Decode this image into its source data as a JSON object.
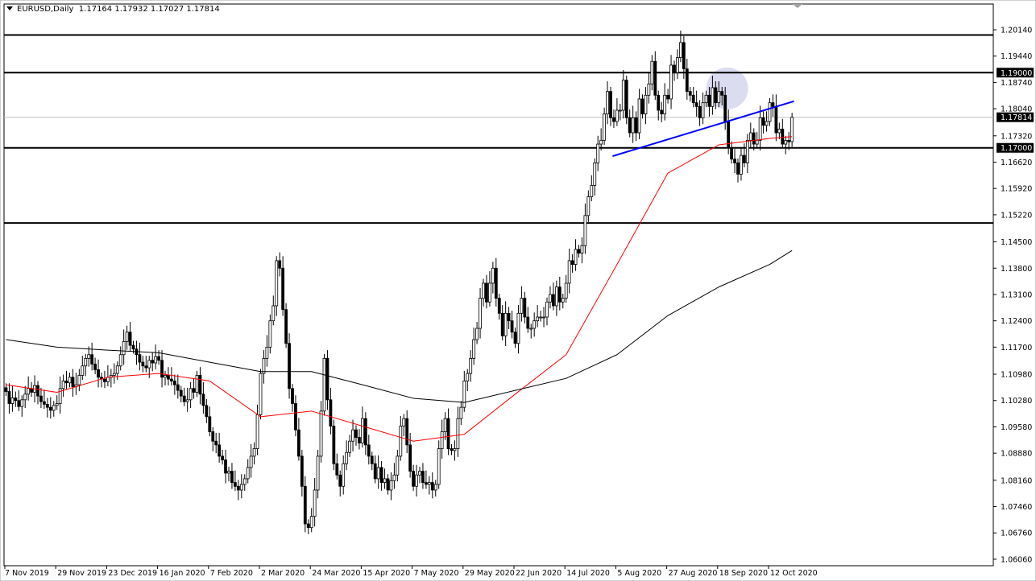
{
  "header": {
    "symbol_timeframe": "EURUSD,Daily",
    "ohlc_text": "1.17164 1.17932 1.17027 1.17814"
  },
  "chart_data": {
    "type": "candlestick",
    "symbol": "EURUSD",
    "timeframe": "Daily",
    "first_date": "2019-11-07",
    "last_bar": {
      "open": 1.17164,
      "high": 1.17932,
      "low": 1.17027,
      "close": 1.17814
    },
    "ylim": [
      1.0578,
      1.2074
    ],
    "y_ticks": [
      "1.20140",
      "1.19440",
      "1.18740",
      "1.18040",
      "1.17320",
      "1.16620",
      "1.15920",
      "1.15220",
      "1.14500",
      "1.13800",
      "1.13100",
      "1.12400",
      "1.11700",
      "1.10980",
      "1.10280",
      "1.09580",
      "1.08880",
      "1.08160",
      "1.07460",
      "1.06760",
      "1.06060"
    ],
    "x_labels": [
      "7 Nov 2019",
      "29 Nov 2019",
      "23 Dec 2019",
      "16 Jan 2020",
      "7 Feb 2020",
      "2 Mar 2020",
      "24 Mar 2020",
      "15 Apr 2020",
      "7 May 2020",
      "29 May 2020",
      "22 Jun 2020",
      "14 Jul 2020",
      "5 Aug 2020",
      "27 Aug 2020",
      "18 Sep 2020",
      "12 Oct 2020"
    ],
    "x_label_bars_apart": 16,
    "closes": [
      1.1052,
      1.102,
      1.1035,
      1.1028,
      1.1012,
      1.103,
      1.1045,
      1.106,
      1.105,
      1.1068,
      1.104,
      1.1025,
      1.1018,
      1.101,
      1.1002,
      1.1015,
      1.102,
      1.106,
      1.108,
      1.1075,
      1.109,
      1.1065,
      1.107,
      1.1095,
      1.112,
      1.114,
      1.115,
      1.1125,
      1.111,
      1.109,
      1.1085,
      1.1078,
      1.109,
      1.1095,
      1.11,
      1.112,
      1.115,
      1.1185,
      1.121,
      1.1175,
      1.1165,
      1.115,
      1.113,
      1.112,
      1.1115,
      1.1135,
      1.1128,
      1.1145,
      1.1135,
      1.109,
      1.1095,
      1.1085,
      1.108,
      1.107,
      1.1055,
      1.104,
      1.1025,
      1.103,
      1.106,
      1.105,
      1.1095,
      1.1045,
      1.1015,
      1.0985,
      1.0945,
      1.092,
      1.091,
      1.088,
      1.087,
      1.0835,
      1.084,
      1.081,
      1.08,
      1.079,
      1.0805,
      1.082,
      1.085,
      1.088,
      1.09,
      1.099,
      1.11,
      1.114,
      1.117,
      1.124,
      1.128,
      1.14,
      1.138,
      1.127,
      1.118,
      1.106,
      1.102,
      1.095,
      1.088,
      1.08,
      1.07,
      1.069,
      1.072,
      1.079,
      1.088,
      1.1,
      1.114,
      1.103,
      1.096,
      1.086,
      1.083,
      1.08,
      1.086,
      1.089,
      1.092,
      1.095,
      1.093,
      1.0915,
      1.098,
      1.091,
      1.088,
      1.086,
      1.082,
      1.085,
      1.081,
      1.082,
      1.079,
      1.0815,
      1.083,
      1.088,
      1.096,
      1.098,
      1.091,
      1.084,
      1.08,
      1.083,
      1.084,
      1.081,
      1.0805,
      1.081,
      1.079,
      1.0805,
      1.09,
      1.0945,
      1.098,
      1.09,
      1.0895,
      1.09,
      1.098,
      1.101,
      1.108,
      1.11,
      1.114,
      1.119,
      1.122,
      1.13,
      1.134,
      1.129,
      1.134,
      1.138,
      1.13,
      1.126,
      1.12,
      1.126,
      1.124,
      1.121,
      1.118,
      1.126,
      1.13,
      1.125,
      1.122,
      1.122,
      1.124,
      1.125,
      1.125,
      1.125,
      1.129,
      1.131,
      1.128,
      1.133,
      1.129,
      1.13,
      1.134,
      1.14,
      1.139,
      1.143,
      1.142,
      1.144,
      1.152,
      1.157,
      1.16,
      1.166,
      1.171,
      1.172,
      1.179,
      1.185,
      1.178,
      1.177,
      1.18,
      1.18,
      1.188,
      1.178,
      1.174,
      1.178,
      1.174,
      1.183,
      1.179,
      1.184,
      1.187,
      1.193,
      1.184,
      1.18,
      1.179,
      1.184,
      1.183,
      1.192,
      1.19,
      1.194,
      1.198,
      1.191,
      1.185,
      1.184,
      1.182,
      1.181,
      1.178,
      1.182,
      1.184,
      1.181,
      1.186,
      1.182,
      1.185,
      1.184,
      1.177,
      1.17,
      1.167,
      1.166,
      1.163,
      1.168,
      1.166,
      1.172,
      1.174,
      1.171,
      1.172,
      1.178,
      1.176,
      1.177,
      1.182,
      1.181,
      1.174,
      1.175,
      1.171,
      1.172,
      1.1716,
      1.1781
    ],
    "moving_averages": [
      {
        "color": "#ff0000",
        "points": [
          1.107,
          1.105,
          1.109,
          1.11,
          1.108,
          1.0985,
          1.1,
          1.096,
          1.092,
          1.0938,
          1.1045,
          1.115,
          1.139,
          1.1633,
          1.1708,
          1.1725,
          1.173
        ]
      },
      {
        "color": "#000000",
        "points": [
          1.119,
          1.117,
          1.1162,
          1.1155,
          1.113,
          1.1105,
          1.1105,
          1.107,
          1.1034,
          1.1023,
          1.1055,
          1.1087,
          1.115,
          1.1254,
          1.133,
          1.139,
          1.1427
        ]
      }
    ],
    "horizontal_levels": [
      1.2,
      1.19,
      1.17,
      1.15
    ],
    "highlighted_levels": [
      "1.19000",
      "1.17000"
    ],
    "current_price": "1.17814",
    "trendline": {
      "color": "#0000ff",
      "start": {
        "date": "2020-07-31",
        "price": 1.1678
      },
      "end": {
        "date": "2020-10-20",
        "price": 1.1824
      }
    },
    "highlight_circle": {
      "date": "2020-09-21",
      "price": 1.1858,
      "color": "#d8d8f0"
    }
  }
}
